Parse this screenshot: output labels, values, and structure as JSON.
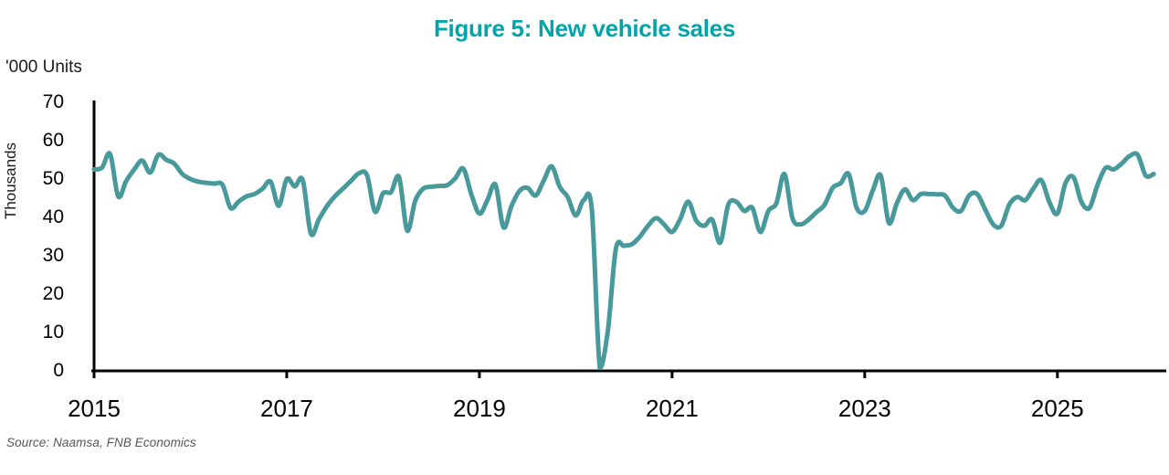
{
  "colors": {
    "title_teal": "#00A5AC",
    "line_teal": "#48999C",
    "axis_black": "#000000",
    "tick_text": "#000000",
    "source_gray": "#555555"
  },
  "chart_data": {
    "type": "line",
    "title": "Figure 5: New vehicle sales",
    "units_label": "'000 Units",
    "ylabel": "Thousands",
    "xlabel": "",
    "source": "Source: Naamsa, FNB Economics",
    "series_name": "New vehicle sales, monthly, thousands of units",
    "frequency": "monthly",
    "x_start": "2015-01",
    "x_end": "2026-01",
    "ylim": [
      0,
      70
    ],
    "grid": false,
    "legend": "none",
    "y_ticks": [
      "70",
      "60",
      "50",
      "40",
      "30",
      "20",
      "10",
      "0"
    ],
    "x_tick_labels": [
      "2015",
      "2017",
      "2019",
      "2021",
      "2023",
      "2025"
    ],
    "values": [
      52.5,
      53.0,
      56.5,
      45.5,
      49.5,
      52.5,
      54.8,
      51.7,
      56.3,
      55.0,
      54.0,
      51.3,
      50.0,
      49.3,
      49.0,
      48.8,
      48.5,
      42.5,
      44.1,
      45.5,
      46.1,
      47.5,
      49.3,
      43.0,
      50.0,
      48.1,
      49.7,
      35.8,
      39.5,
      42.9,
      45.5,
      47.5,
      49.5,
      51.5,
      51.0,
      41.5,
      46.3,
      46.6,
      50.5,
      36.6,
      44.3,
      47.5,
      48.0,
      48.2,
      48.4,
      50.2,
      52.7,
      46.0,
      41.0,
      44.5,
      48.5,
      37.4,
      43.0,
      46.9,
      47.7,
      45.7,
      49.5,
      53.3,
      48.0,
      45.3,
      40.5,
      44.5,
      42.1,
      0.8,
      10.5,
      31.8,
      32.6,
      33.0,
      35.0,
      37.8,
      39.8,
      38.2,
      36.2,
      39.5,
      44.1,
      39.2,
      37.8,
      39.4,
      33.4,
      43.3,
      44.1,
      41.7,
      42.5,
      36.2,
      41.7,
      43.7,
      51.3,
      39.8,
      38.2,
      39.4,
      41.4,
      43.3,
      47.7,
      48.9,
      51.3,
      42.5,
      41.7,
      47.0,
      50.9,
      38.6,
      43.7,
      47.3,
      44.5,
      46.1,
      46.1,
      46.0,
      45.7,
      42.5,
      41.7,
      45.7,
      46.1,
      42.1,
      38.2,
      37.8,
      43.3,
      45.3,
      44.5,
      47.5,
      49.7,
      44.0,
      41.0,
      48.9,
      50.5,
      44.0,
      42.5,
      48.5,
      52.9,
      52.5,
      54.0,
      56.0,
      56.3,
      50.9,
      51.3
    ]
  }
}
